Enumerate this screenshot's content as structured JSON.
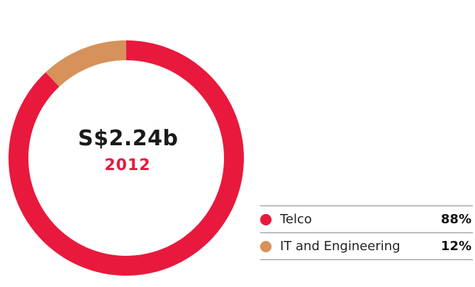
{
  "chart_data": {
    "type": "pie",
    "total_label": "S$2.24b",
    "year_label": "2012",
    "slices": [
      {
        "name": "Telco",
        "value": 88,
        "value_label": "88%",
        "color": "#e8193c"
      },
      {
        "name": "IT and Engineering",
        "value": 12,
        "value_label": "12%",
        "color": "#d7915a"
      }
    ]
  }
}
